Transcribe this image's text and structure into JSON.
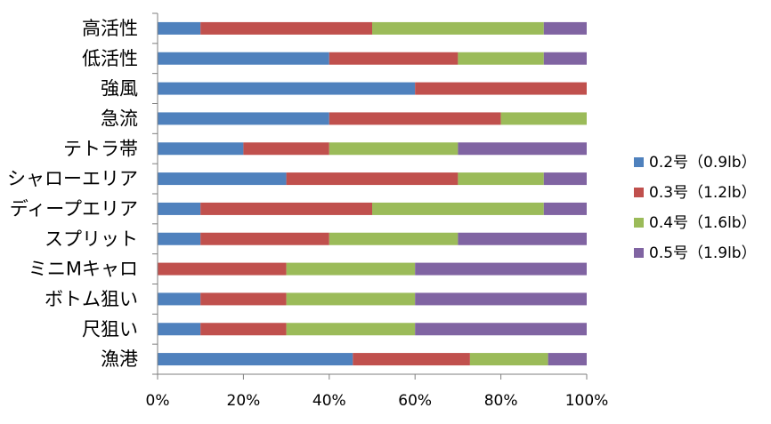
{
  "colors": {
    "axis": "#7f7f7f",
    "gridline": "#bfbfbf"
  },
  "chart_data": {
    "type": "bar",
    "orientation": "horizontal",
    "stacked": "percent",
    "categories": [
      "高活性",
      "低活性",
      "強風",
      "急流",
      "テトラ帯",
      "シャローエリア",
      "ディープエリア",
      "スプリット",
      "ミニMキャロ",
      "ボトム狙い",
      "尺狙い",
      "漁港"
    ],
    "series": [
      {
        "name": "0.2号（0.9lb）",
        "color": "#4f81bd",
        "values": [
          10,
          40,
          60,
          40,
          20,
          30,
          10,
          10,
          0,
          10,
          10,
          45.5
        ]
      },
      {
        "name": "0.3号（1.2lb）",
        "color": "#c0504d",
        "values": [
          40,
          30,
          40,
          40,
          20,
          40,
          40,
          30,
          30,
          20,
          20,
          27.3
        ]
      },
      {
        "name": "0.4号（1.6lb）",
        "color": "#9bbb59",
        "values": [
          40,
          20,
          0,
          20,
          30,
          20,
          40,
          30,
          30,
          30,
          30,
          18.2
        ]
      },
      {
        "name": "0.5号（1.9lb）",
        "color": "#8064a2",
        "values": [
          10,
          10,
          0,
          0,
          30,
          10,
          10,
          30,
          40,
          40,
          40,
          9.0
        ]
      }
    ],
    "x_ticks": [
      "0%",
      "20%",
      "40%",
      "60%",
      "80%",
      "100%"
    ],
    "xlim": [
      0,
      100
    ],
    "grid": false,
    "legend": "right",
    "title": "",
    "xlabel": "",
    "ylabel": ""
  }
}
